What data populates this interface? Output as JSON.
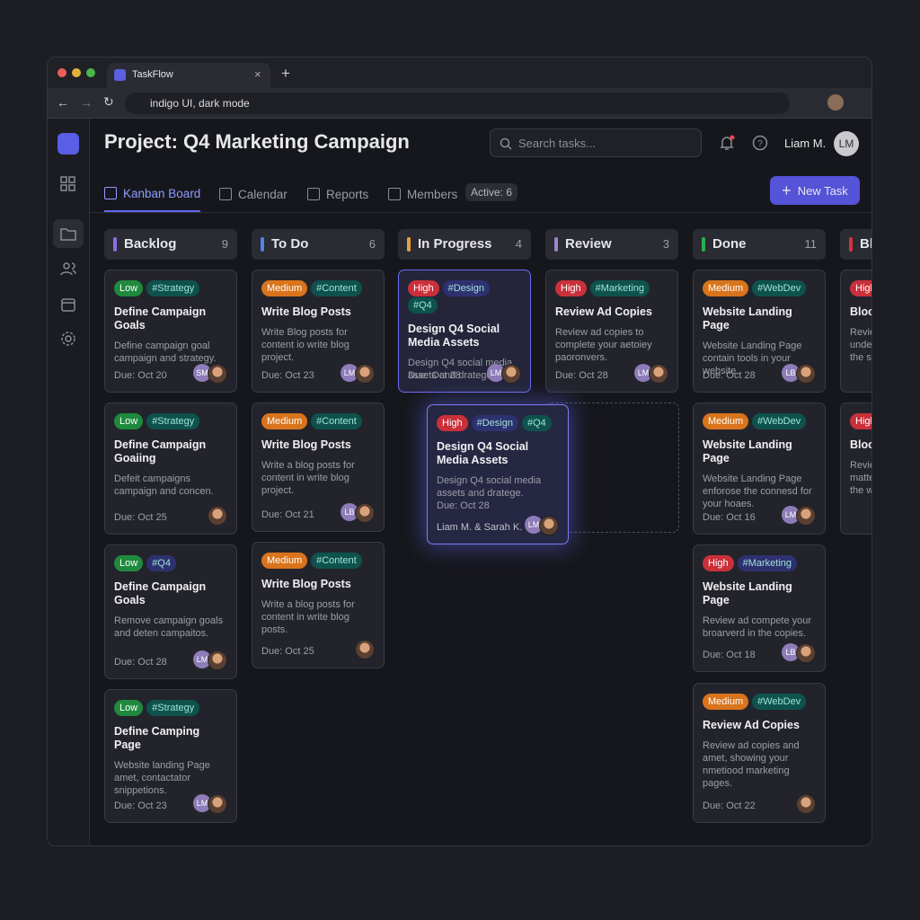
{
  "browser": {
    "tab_title": "TaskFlow",
    "address": "indigo UI, dark mode"
  },
  "header": {
    "title": "Project: Q4 Marketing Campaign",
    "search_placeholder": "Search tasks...",
    "user_name": "Liam M.",
    "user_initials": "LM"
  },
  "tabs": [
    "Kanban Board",
    "Calendar",
    "Reports",
    "Members"
  ],
  "active_badge": "Active: 6",
  "new_task_button": "New Task",
  "columns": [
    {
      "title": "Backlog",
      "count": 9,
      "color": "#8b6fe0",
      "cards": [
        {
          "priority": {
            "label": "Low",
            "color": "#1f8a3d"
          },
          "tags": [
            {
              "label": "#Strategy",
              "color": "#0f524d"
            }
          ],
          "title": "Define Campaign Goals",
          "description": "Define campaign goal campaign and strategy.",
          "due": "Due: Oct 20",
          "avatars": [
            "SM"
          ]
        },
        {
          "priority": {
            "label": "Low",
            "color": "#1f8a3d"
          },
          "tags": [
            {
              "label": "#Strategy",
              "color": "#0f524d"
            }
          ],
          "title": "Define Campaign Goaiing",
          "description": "Defeit campaigns campaign and concen.",
          "due": "Due: Oct 25",
          "avatars": []
        },
        {
          "priority": {
            "label": "Low",
            "color": "#1f8a3d"
          },
          "tags": [
            {
              "label": "#Q4",
              "color": "#2e3170"
            }
          ],
          "title": "Define Campaign Goals",
          "description": "Remove campaign goals and deten campaitos.",
          "due": "Due: Oct 28",
          "avatars": [
            "LM"
          ]
        },
        {
          "priority": {
            "label": "Low",
            "color": "#1f8a3d"
          },
          "tags": [
            {
              "label": "#Strategy",
              "color": "#0f524d"
            }
          ],
          "title": "Define Camping Page",
          "description": "Website landing Page amet, contactator snippetions.",
          "due": "Due: Oct 23",
          "avatars": [
            "LM"
          ]
        }
      ]
    },
    {
      "title": "To Do",
      "count": 6,
      "color": "#4f86e8",
      "cards": [
        {
          "priority": {
            "label": "Medium",
            "color": "#d9741c"
          },
          "tags": [
            {
              "label": "#Content",
              "color": "#0f524d"
            }
          ],
          "title": "Write Blog Posts",
          "description": "Write Blog posts for content io write blog project.",
          "due": "Due: Oct 23",
          "avatars": [
            "LM"
          ]
        },
        {
          "priority": {
            "label": "Medium",
            "color": "#d9741c"
          },
          "tags": [
            {
              "label": "#Content",
              "color": "#0f524d"
            }
          ],
          "title": "Write Blog Posts",
          "description": "Write a blog posts for content in write blog project.",
          "due": "Due: Oct 21",
          "avatars": [
            "LB"
          ]
        },
        {
          "priority": {
            "label": "Medium",
            "color": "#d9741c"
          },
          "tags": [
            {
              "label": "#Content",
              "color": "#0f524d"
            }
          ],
          "title": "Write Blog Posts",
          "description": "Write a blog posts for content in write blog posts.",
          "due": "Due: Oct 25",
          "avatars": []
        }
      ]
    },
    {
      "title": "In Progress",
      "count": 4,
      "color": "#e8a23a",
      "cards": [
        {
          "priority": {
            "label": "High",
            "color": "#c9303a"
          },
          "tags": [
            {
              "label": "#Design",
              "color": "#2e3170"
            },
            {
              "label": "#Q4",
              "color": "#0f524d"
            }
          ],
          "title": "Design Q4 Social Media Assets",
          "description": "Design Q4 social media assets and dratege.",
          "due": "Due: Oct 28",
          "avatars": [
            "LM"
          ]
        }
      ]
    },
    {
      "title": "Review",
      "count": 3,
      "color": "#9a86c8",
      "cards": [
        {
          "priority": {
            "label": "High",
            "color": "#c9303a"
          },
          "tags": [
            {
              "label": "#Marketing",
              "color": "#0f524d"
            }
          ],
          "title": "Review Ad Copies",
          "description": "Review ad copies to complete your aetoiey paoronvers.",
          "due": "Due: Oct 28",
          "avatars": [
            "LM"
          ]
        }
      ]
    },
    {
      "title": "Done",
      "count": 11,
      "color": "#2fae5a",
      "cards": [
        {
          "priority": {
            "label": "Medium",
            "color": "#d9741c"
          },
          "tags": [
            {
              "label": "#WebDev",
              "color": "#0f524d"
            }
          ],
          "title": "Website Landing Page",
          "description": "Website Landing Page contain tools in your website.",
          "due": "Due: Oct 28",
          "avatars": [
            "LB"
          ]
        },
        {
          "priority": {
            "label": "Medium",
            "color": "#d9741c"
          },
          "tags": [
            {
              "label": "#WebDev",
              "color": "#0f524d"
            }
          ],
          "title": "Website Landing Page",
          "description": "Website Landing Page enforose the connesd for your hoaes.",
          "due": "Due: Oct 16",
          "avatars": [
            "LM"
          ]
        },
        {
          "priority": {
            "label": "High",
            "color": "#c9303a"
          },
          "tags": [
            {
              "label": "#Marketing",
              "color": "#2e3170"
            }
          ],
          "title": "Website Landing Page",
          "description": "Review ad compete your broarverd in the copies.",
          "due": "Due: Oct 18",
          "avatars": [
            "LB"
          ]
        },
        {
          "priority": {
            "label": "Medium",
            "color": "#d9741c"
          },
          "tags": [
            {
              "label": "#WebDev",
              "color": "#0f524d"
            }
          ],
          "title": "Review Ad Copies",
          "description": "Review ad copies and amet, showing your nmetiood marketing pages.",
          "due": "Due: Oct 22",
          "avatars": []
        }
      ]
    },
    {
      "title": "Bl",
      "color": "#d6333d",
      "cards": [
        {
          "priority": {
            "label": "High",
            "color": "#c9303a"
          },
          "tags": [],
          "title": "Block",
          "description": "Revie\nunde\nthe s",
          "avatars": []
        },
        {
          "priority": {
            "label": "High",
            "color": "#c9303a"
          },
          "tags": [],
          "title": "Block",
          "description": "Revie\nmatte\nthe w",
          "avatars": []
        }
      ]
    }
  ],
  "dragged_card": {
    "priority": {
      "label": "High",
      "color": "#c9303a"
    },
    "tags": [
      {
        "label": "#Design",
        "color": "#2e3170"
      },
      {
        "label": "#Q4",
        "color": "#0f524d"
      }
    ],
    "title": "Design Q4 Social Media Assets",
    "description": "Design Q4 social media assets and dratege.",
    "due": "Due: Oct 28",
    "assignees": "Liam M. & Sarah K.",
    "avatars": [
      "LM"
    ]
  }
}
